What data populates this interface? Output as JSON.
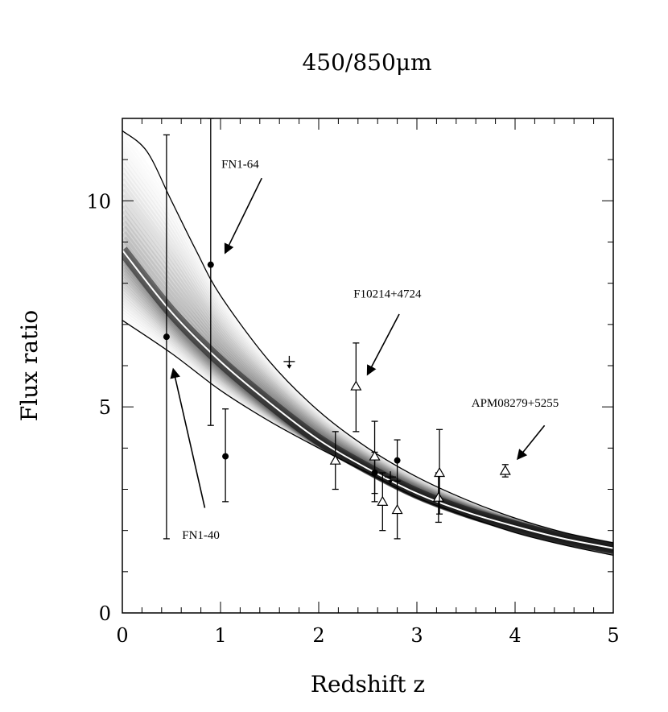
{
  "chart_data": {
    "type": "scatter",
    "title": "450/850μm",
    "xlabel": "Redshift z",
    "ylabel": "Flux ratio",
    "xlim": [
      0,
      5
    ],
    "ylim": [
      0,
      12
    ],
    "x_ticks": [
      "0",
      "1",
      "2",
      "3",
      "4",
      "5"
    ],
    "y_ticks": [
      "0",
      "5",
      "10"
    ],
    "model_curve": {
      "x": [
        0,
        0.5,
        1,
        1.5,
        2,
        2.5,
        3,
        3.5,
        4,
        4.5,
        5
      ],
      "y": [
        8.8,
        7.3,
        6.1,
        5.1,
        4.2,
        3.5,
        2.9,
        2.45,
        2.1,
        1.8,
        1.57
      ]
    },
    "envelope_upper": {
      "x": [
        0,
        0.25,
        0.5,
        0.75,
        1,
        1.5,
        2,
        2.5,
        3,
        3.5,
        4,
        4.5,
        5
      ],
      "y": [
        11.7,
        11.2,
        10.0,
        8.8,
        7.7,
        6.1,
        4.9,
        4.0,
        3.3,
        2.75,
        2.3,
        1.95,
        1.7
      ]
    },
    "envelope_lower": {
      "x": [
        0,
        0.5,
        1,
        1.5,
        2,
        2.5,
        3,
        3.5,
        4,
        4.5,
        5
      ],
      "y": [
        7.1,
        6.3,
        5.4,
        4.65,
        4.0,
        3.4,
        2.8,
        2.35,
        1.95,
        1.65,
        1.4
      ]
    },
    "series": [
      {
        "marker": "filled-circle",
        "points": [
          {
            "x": 0.45,
            "y": 6.7,
            "yerr_low": 4.9,
            "yerr_high": 4.9
          },
          {
            "x": 0.9,
            "y": 8.45,
            "yerr_low": 3.9,
            "yerr_high": 3.7
          },
          {
            "x": 1.05,
            "y": 3.8,
            "yerr_low": 1.1,
            "yerr_high": 1.15
          },
          {
            "x": 2.57,
            "y": 3.4,
            "yerr_low": 0.5,
            "yerr_high": 0.5
          },
          {
            "x": 2.8,
            "y": 3.7,
            "yerr_low": 0.5,
            "yerr_high": 0.5
          }
        ]
      },
      {
        "marker": "open-triangle",
        "points": [
          {
            "x": 2.17,
            "y": 3.7,
            "yerr_low": 0.7,
            "yerr_high": 0.7
          },
          {
            "x": 2.38,
            "y": 5.5,
            "yerr_low": 1.1,
            "yerr_high": 1.05
          },
          {
            "x": 2.57,
            "y": 3.8,
            "yerr_low": 1.1,
            "yerr_high": 0.85
          },
          {
            "x": 2.65,
            "y": 2.7,
            "yerr_low": 0.7,
            "yerr_high": 0.7
          },
          {
            "x": 2.8,
            "y": 2.5,
            "yerr_low": 0.7,
            "yerr_high": 0.7
          },
          {
            "x": 3.22,
            "y": 2.8,
            "yerr_low": 0.6,
            "yerr_high": 0.6
          },
          {
            "x": 3.23,
            "y": 3.4,
            "yerr_low": 1.0,
            "yerr_high": 1.05
          },
          {
            "x": 3.9,
            "y": 3.45,
            "yerr_low": 0.15,
            "yerr_high": 0.15
          }
        ]
      },
      {
        "marker": "upper-limit",
        "points": [
          {
            "x": 1.7,
            "y": 6.1
          },
          {
            "x": 2.73,
            "y": 3.3
          }
        ]
      }
    ],
    "annotations": [
      {
        "text": "FN1-64",
        "text_x": 1.2,
        "text_y": 10.8,
        "arrow_from": [
          1.42,
          10.55
        ],
        "arrow_to": [
          1.05,
          8.75
        ]
      },
      {
        "text": "F10214+4724",
        "text_x": 2.7,
        "text_y": 7.65,
        "arrow_from": [
          2.82,
          7.25
        ],
        "arrow_to": [
          2.5,
          5.8
        ]
      },
      {
        "text": "APM08279+5255",
        "text_x": 4.0,
        "text_y": 5.0,
        "arrow_from": [
          4.3,
          4.55
        ],
        "arrow_to": [
          4.03,
          3.75
        ]
      },
      {
        "text": "FN1-40",
        "text_x": 0.8,
        "text_y": 1.8,
        "arrow_from": [
          0.84,
          2.55
        ],
        "arrow_to": [
          0.52,
          5.9
        ]
      }
    ]
  }
}
